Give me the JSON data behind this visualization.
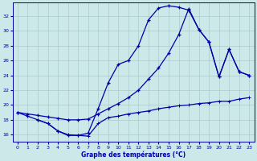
{
  "title": "Graphe des températures (°C)",
  "bg_color": "#cce8e8",
  "line_color": "#0000aa",
  "grid_color": "#aacccc",
  "ylabel_ticks": [
    16,
    18,
    20,
    22,
    24,
    26,
    28,
    30,
    32
  ],
  "xlabel_ticks": [
    0,
    1,
    2,
    3,
    4,
    5,
    6,
    7,
    8,
    9,
    10,
    11,
    12,
    13,
    14,
    15,
    16,
    17,
    18,
    19,
    20,
    21,
    22,
    23
  ],
  "xlim": [
    -0.5,
    23.5
  ],
  "ylim": [
    15.0,
    33.8
  ],
  "c1x": [
    0,
    1,
    2,
    3,
    4,
    5,
    6,
    7,
    8,
    9,
    10,
    11,
    12,
    13,
    14,
    15,
    16,
    17,
    18,
    19,
    20,
    21,
    22,
    23
  ],
  "c1y": [
    19.0,
    18.5,
    18.0,
    17.5,
    16.5,
    15.9,
    15.9,
    16.2,
    19.5,
    23.0,
    25.5,
    26.0,
    28.0,
    31.5,
    33.1,
    33.4,
    33.2,
    32.8,
    30.2,
    28.5,
    23.8,
    27.5,
    24.5,
    24.0
  ],
  "c2x": [
    0,
    1,
    2,
    3,
    4,
    5,
    6,
    7,
    8,
    9,
    10,
    11,
    12,
    13,
    14,
    15,
    16,
    17,
    18,
    19,
    20,
    21,
    22,
    23
  ],
  "c2y": [
    19.0,
    18.8,
    18.6,
    18.4,
    18.2,
    18.0,
    18.0,
    18.1,
    18.8,
    19.5,
    20.2,
    21.0,
    22.0,
    23.5,
    25.0,
    27.0,
    29.5,
    33.0,
    30.2,
    28.5,
    23.8,
    27.5,
    24.5,
    24.0
  ],
  "c3x": [
    2,
    3,
    4,
    5,
    6,
    7,
    8,
    9,
    10,
    11,
    12,
    13,
    14,
    15,
    16,
    17,
    18,
    19,
    20,
    21,
    22,
    23
  ],
  "c3y": [
    18.0,
    17.5,
    16.5,
    16.0,
    15.9,
    15.8,
    17.5,
    18.3,
    18.5,
    18.8,
    19.0,
    19.2,
    19.5,
    19.7,
    19.9,
    20.0,
    20.2,
    20.3,
    20.5,
    20.5,
    20.8,
    21.0
  ]
}
